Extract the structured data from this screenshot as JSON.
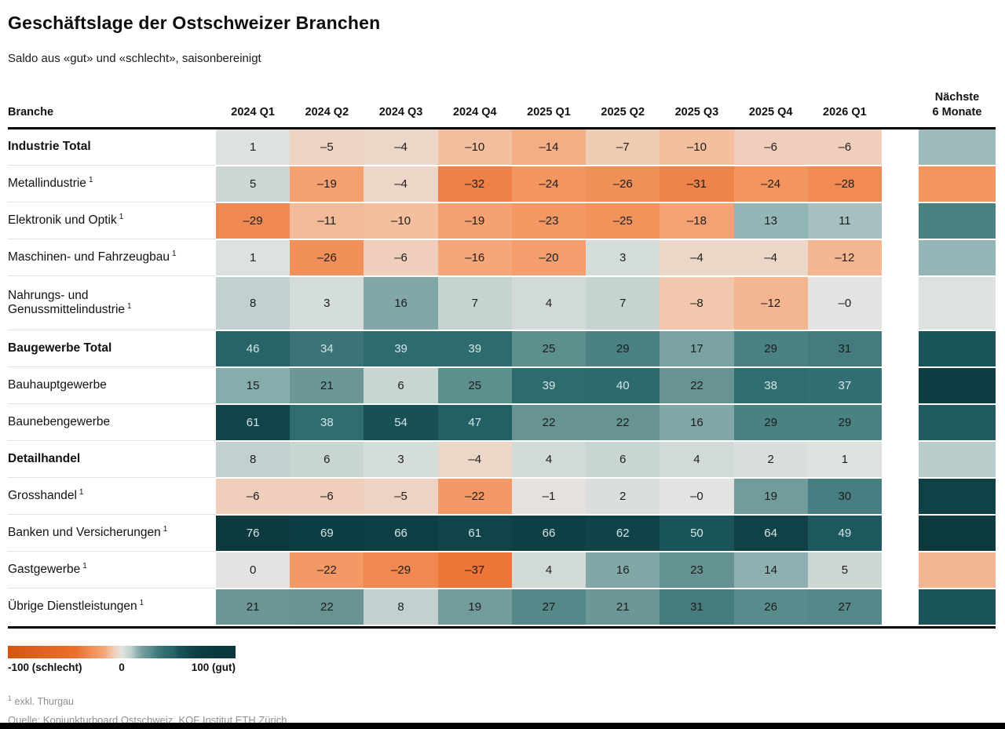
{
  "page": {
    "title": "Geschäftslage der Ostschweizer Branchen",
    "subtitle": "Saldo aus «gut» und «schlecht», saisonbereinigt"
  },
  "chart_data": {
    "type": "heatmap",
    "row_header": "Branche",
    "columns": [
      "2024 Q1",
      "2024 Q2",
      "2024 Q3",
      "2024 Q4",
      "2025 Q1",
      "2025 Q2",
      "2025 Q3",
      "2025 Q4",
      "2026 Q1"
    ],
    "forecast_column_label_lines": [
      "Nächste",
      "6 Monate"
    ],
    "value_domain": [
      -100,
      100
    ],
    "colorscale": [
      [
        -100,
        "#d4550f"
      ],
      [
        -40,
        "#ec6f2e"
      ],
      [
        -32,
        "#ef8148"
      ],
      [
        -25,
        "#f2935c"
      ],
      [
        -15,
        "#f5a87d"
      ],
      [
        -10,
        "#f3bf9f"
      ],
      [
        -5,
        "#eed3c2"
      ],
      [
        0,
        "#e3e4e2"
      ],
      [
        3,
        "#d5ddda"
      ],
      [
        5,
        "#ccd7d4"
      ],
      [
        8,
        "#c2d1cf"
      ],
      [
        13,
        "#94b5b5"
      ],
      [
        17,
        "#7aa2a2"
      ],
      [
        22,
        "#679493"
      ],
      [
        25,
        "#5d8f8f"
      ],
      [
        29,
        "#4a8183"
      ],
      [
        34,
        "#3a7477"
      ],
      [
        39,
        "#2e6b6e"
      ],
      [
        46,
        "#266468"
      ],
      [
        50,
        "#19545a"
      ],
      [
        54,
        "#175055"
      ],
      [
        61,
        "#114449"
      ],
      [
        66,
        "#0e3f45"
      ],
      [
        76,
        "#0c3a3f"
      ],
      [
        100,
        "#0a363c"
      ]
    ],
    "rows": [
      {
        "label": "Industrie Total",
        "sup": "",
        "bold": true,
        "values": [
          "1",
          "–5",
          "–4",
          "–10",
          "–14",
          "–7",
          "–10",
          "–6",
          "–6"
        ],
        "forecast_color_value": 12
      },
      {
        "label": "Metallindustrie",
        "sup": "1",
        "bold": false,
        "values": [
          "5",
          "–19",
          "–4",
          "–32",
          "–24",
          "–26",
          "–31",
          "–24",
          "–28"
        ],
        "forecast_color_value": -24
      },
      {
        "label": "Elektronik und Optik",
        "sup": "1",
        "bold": false,
        "values": [
          "–29",
          "–11",
          "–10",
          "–19",
          "–23",
          "–25",
          "–18",
          "13",
          "11"
        ],
        "forecast_color_value": 29
      },
      {
        "label": "Maschinen- und Fahrzeugbau",
        "sup": "1",
        "bold": false,
        "values": [
          "1",
          "–26",
          "–6",
          "–16",
          "–20",
          "3",
          "–4",
          "–4",
          "–12"
        ],
        "forecast_color_value": 13
      },
      {
        "label": "Nahrungs- und Genussmittelindustrie",
        "sup": "1",
        "bold": false,
        "values": [
          "8",
          "3",
          "16",
          "7",
          "4",
          "7",
          "–8",
          "–12",
          "–0"
        ],
        "forecast_color_value": 1
      },
      {
        "label": "Baugewerbe Total",
        "sup": "",
        "bold": true,
        "values": [
          "46",
          "34",
          "39",
          "39",
          "25",
          "29",
          "17",
          "29",
          "31"
        ],
        "forecast_color_value": 50
      },
      {
        "label": "Bauhauptgewerbe",
        "sup": "",
        "bold": false,
        "values": [
          "15",
          "21",
          "6",
          "25",
          "39",
          "40",
          "22",
          "38",
          "37"
        ],
        "forecast_color_value": 68
      },
      {
        "label": "Baunebengewerbe",
        "sup": "",
        "bold": false,
        "values": [
          "61",
          "38",
          "54",
          "47",
          "22",
          "22",
          "16",
          "29",
          "29"
        ],
        "forecast_color_value": 48
      },
      {
        "label": "Detailhandel",
        "sup": "",
        "bold": true,
        "values": [
          "8",
          "6",
          "3",
          "–4",
          "4",
          "6",
          "4",
          "2",
          "1"
        ],
        "forecast_color_value": 9
      },
      {
        "label": "Grosshandel",
        "sup": "1",
        "bold": false,
        "values": [
          "–6",
          "–6",
          "–5",
          "–22",
          "–1",
          "2",
          "–0",
          "19",
          "30"
        ],
        "forecast_color_value": 64
      },
      {
        "label": "Banken und Versicherungen",
        "sup": "1",
        "bold": false,
        "values": [
          "76",
          "69",
          "66",
          "61",
          "66",
          "62",
          "50",
          "64",
          "49"
        ],
        "forecast_color_value": 76
      },
      {
        "label": "Gastgewerbe",
        "sup": "1",
        "bold": false,
        "values": [
          "0",
          "–22",
          "–29",
          "–37",
          "4",
          "16",
          "23",
          "14",
          "5"
        ],
        "forecast_color_value": -12
      },
      {
        "label": "Übrige Dienstleistungen",
        "sup": "1",
        "bold": false,
        "values": [
          "21",
          "22",
          "8",
          "19",
          "27",
          "21",
          "31",
          "26",
          "27"
        ],
        "forecast_color_value": 50
      }
    ]
  },
  "legend": {
    "min_label": "-100 (schlecht)",
    "mid_label": "0",
    "max_label": "100 (gut)"
  },
  "footnotes": {
    "note_sup": "1",
    "note_text": "exkl. Thurgau",
    "source": "Quelle: Konjunkturboard Ostschweiz, KOF Institut ETH Zürich"
  }
}
